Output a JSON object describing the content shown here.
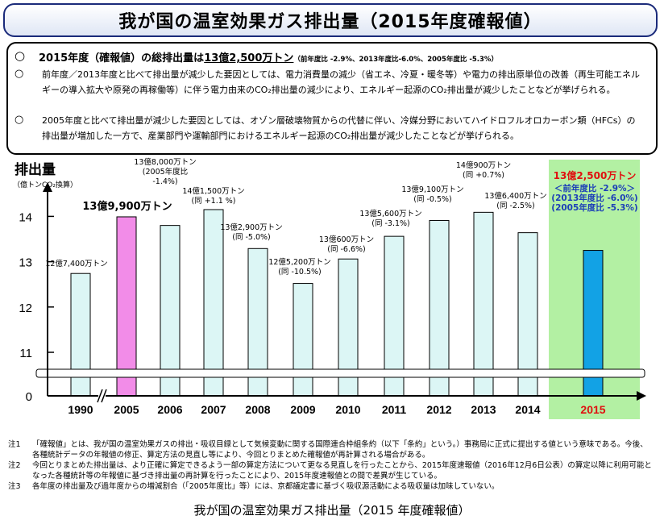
{
  "title": "我が国の温室効果ガス排出量（2015年度確報値）",
  "summary": {
    "headline_prefix": "2015年度（確報値）の総排出量は",
    "headline_value": "13億2,500万トン",
    "headline_suffix": "（前年度比 -2.9%、2013年度比-6.0%、2005年度比 -5.3%）",
    "bullet2": "前年度／2013年度と比べて排出量が減少した要因としては、電力消費量の減少（省エネ、冷夏・暖冬等）や電力の排出原単位の改善（再生可能エネルギーの導入拡大や原発の再稼働等）に伴う電力由来のCO₂排出量の減少により、エネルギー起源のCO₂排出量が減少したことなどが挙げられる。",
    "bullet3": "2005年度と比べて排出量が減少した要因としては、オゾン層破壊物質からの代替に伴い、冷媒分野においてハイドロフルオロカーボン類（HFCs）の排出量が増加した一方で、産業部門や運輸部門におけるエネルギー起源のCO₂排出量が減少したことなどが挙げられる。"
  },
  "chart_data": {
    "type": "bar",
    "ylabel": "排出量",
    "yunit": "（億トンCO₂換算）",
    "yticks": [
      "0",
      "11",
      "12",
      "13",
      "14"
    ],
    "ylim": [
      11,
      14.3
    ],
    "axis_break": true,
    "categories": [
      "1990",
      "2005",
      "2006",
      "2007",
      "2008",
      "2009",
      "2010",
      "2011",
      "2012",
      "2013",
      "2014",
      "2015"
    ],
    "values": [
      12.74,
      13.99,
      13.8,
      14.15,
      13.29,
      12.52,
      13.06,
      13.56,
      13.91,
      14.09,
      13.64,
      13.25
    ],
    "labels": [
      [
        "12億7,400万トン"
      ],
      [
        "13億9,900万トン"
      ],
      [
        "13億8,000万トン",
        "(2005年度比",
        "-1.4%)"
      ],
      [
        "14億1,500万トン",
        "(同 +1.1 %)"
      ],
      [
        "13億2,900万トン",
        "(同 -5.0%)"
      ],
      [
        "12億5,200万トン",
        "(同 -10.5%)"
      ],
      [
        "13億600万トン",
        "(同 -6.6%)"
      ],
      [
        "13億5,600万トン",
        "(同 -3.1%)"
      ],
      [
        "13億9,100万トン",
        "(同 -0.5%)"
      ],
      [
        "14億900万トン",
        "(同 +0.7%)"
      ],
      [
        "13億6,400万トン",
        "(同 -2.5%)"
      ],
      [
        "13億2,500万トン",
        "＜前年度比 -2.9%＞",
        "(2013年度比 -6.0%)",
        "(2005年度比 -5.3%)"
      ]
    ],
    "colors": {
      "normal": "#dcf6f5",
      "base2005": "#f28ce8",
      "latest": "#12a2e5",
      "highlight_bg": "#b3f0a3",
      "latest_label": "#e01010",
      "latest_sub": "#1c3fb8"
    }
  },
  "notes": [
    {
      "label": "注1",
      "text": "「確報値」とは、我が国の温室効果ガスの排出・吸収目録として気候変動に関する国際連合枠組条約（以下「条約」という。）事務局に正式に提出する値という意味である。今後、各種統計データの年報値の修正、算定方法の見直し等により、今回とりまとめた確報値が再計算される場合がある。"
    },
    {
      "label": "注2",
      "text": "今回とりまとめた排出量は、より正確に算定できるよう一部の算定方法について更なる見直しを行ったことから、2015年度速報値（2016年12月6日公表）の算定以降に利用可能となった各種統計等の年報値に基づき排出量の再計算を行ったことにより、2015年度速報値との間で差異が生じている。"
    },
    {
      "label": "注3",
      "text": "各年度の排出量及び過年度からの増減割合（「2005年度比」等）には、京都議定書に基づく吸収源活動による吸収量は加味していない。"
    }
  ],
  "footer": "我が国の温室効果ガス排出量（2015 年度確報値）"
}
